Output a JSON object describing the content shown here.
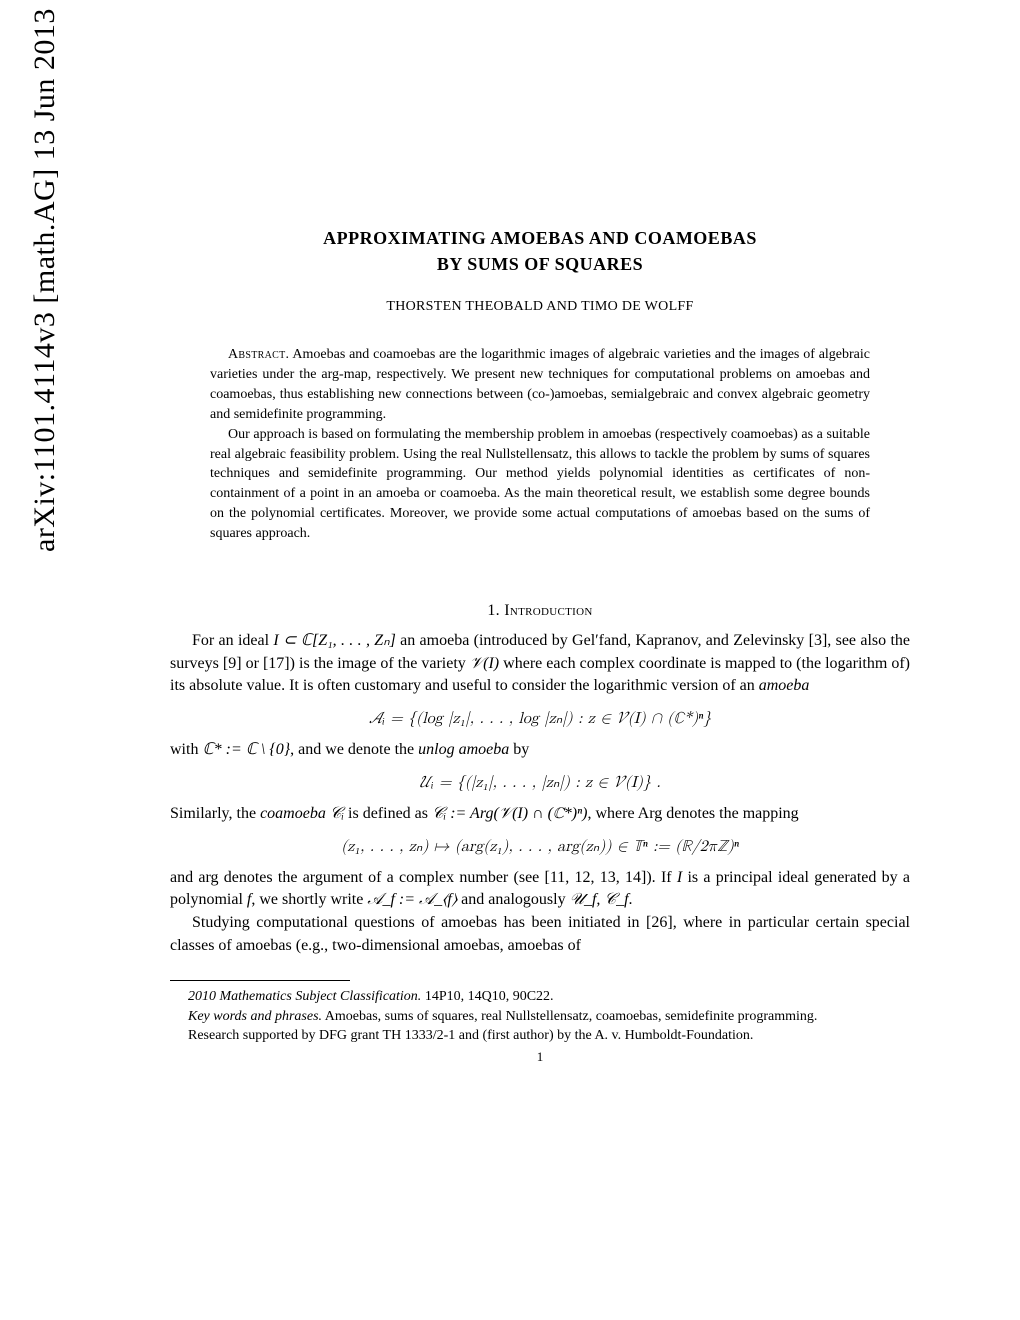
{
  "arxiv": {
    "text": "arXiv:1101.4114v3  [math.AG]  13 Jun 2013"
  },
  "title": {
    "line1": "APPROXIMATING AMOEBAS AND COAMOEBAS",
    "line2": "BY SUMS OF SQUARES"
  },
  "authors": "THORSTEN THEOBALD AND TIMO DE WOLFF",
  "abstract": {
    "label": "Abstract.",
    "para1": "Amoebas and coamoebas are the logarithmic images of algebraic varieties and the images of algebraic varieties under the arg-map, respectively. We present new techniques for computational problems on amoebas and coamoebas, thus establishing new connections between (co-)amoebas, semialgebraic and convex algebraic geometry and semidefinite programming.",
    "para2": "Our approach is based on formulating the membership problem in amoebas (respectively coamoebas) as a suitable real algebraic feasibility problem. Using the real Nullstellensatz, this allows to tackle the problem by sums of squares techniques and semidefinite programming. Our method yields polynomial identities as certificates of non-containment of a point in an amoeba or coamoeba. As the main theoretical result, we establish some degree bounds on the polynomial certificates. Moreover, we provide some actual computations of amoebas based on the sums of squares approach."
  },
  "section1": {
    "heading": "1. Introduction",
    "para1_prefix": "For an ideal ",
    "para1_math1": "I ⊂ ℂ[Z₁, . . . , Zₙ]",
    "para1_mid1": " an amoeba (introduced by Gel′fand, Kapranov, and Zelevinsky [3], see also the surveys [9] or [17]) is the image of the variety ",
    "para1_math2": "𝒱(I)",
    "para1_mid2": " where each complex coordinate is mapped to (the logarithm of) its absolute value. It is often customary and useful to consider the logarithmic version of an ",
    "para1_emph": "amoeba",
    "eq1": "𝒜ᵢ  =  {(log |z₁|, . . . , log |zₙ|) : z ∈ 𝒱(I) ∩ (ℂ*)ⁿ}",
    "para2_prefix": "with ",
    "para2_math1": "ℂ* := ℂ \\ {0}",
    "para2_mid": ", and we denote the ",
    "para2_emph": "unlog amoeba",
    "para2_suffix": " by",
    "eq2": "𝒰ᵢ  =  {(|z₁|, . . . , |zₙ|) : z ∈ 𝒱(I)} .",
    "para3_prefix": "Similarly, the ",
    "para3_emph": "coamoeba",
    "para3_math1": " 𝒞ᵢ",
    "para3_mid1": " is defined as ",
    "para3_math2": "𝒞ᵢ := Arg(𝒱(I) ∩ (ℂ*)ⁿ)",
    "para3_mid2": ", where Arg denotes the mapping",
    "eq3": "(z₁, . . . , zₙ) ↦ (arg(z₁), . . . , arg(zₙ)) ∈ 𝕋ⁿ := (ℝ/2πℤ)ⁿ",
    "para4_prefix": "and arg denotes the argument of a complex number (see [11, 12, 13, 14]). If ",
    "para4_math1": "I",
    "para4_mid1": " is a principal ideal generated by a polynomial ",
    "para4_math2": "f",
    "para4_mid2": ", we shortly write ",
    "para4_math3": "𝒜_f := 𝒜_⟨f⟩",
    "para4_mid3": " and analogously ",
    "para4_math4": "𝒰_f, 𝒞_f",
    "para4_suffix": ".",
    "para5": "Studying computational questions of amoebas has been initiated in [26], where in particular certain special classes of amoebas (e.g., two-dimensional amoebas, amoebas of"
  },
  "footnotes": {
    "msc_label": "2010 Mathematics Subject Classification.",
    "msc_codes": " 14P10, 14Q10, 90C22.",
    "keywords_label": "Key words and phrases.",
    "keywords": " Amoebas, sums of squares, real Nullstellensatz, coamoebas, semidefinite programming.",
    "support": "Research supported by DFG grant TH 1333/2-1 and (first author) by the A. v. Humboldt-Foundation."
  },
  "page_number": "1"
}
